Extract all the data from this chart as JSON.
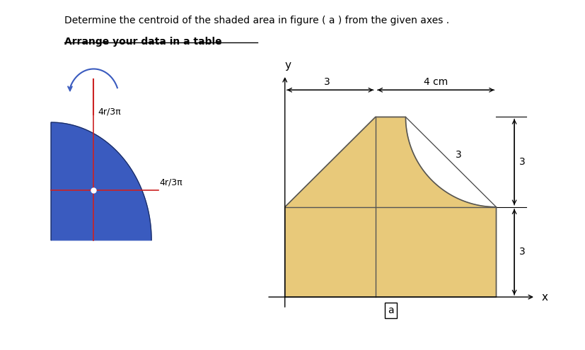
{
  "title_line1": "Determine the centroid of the shaded area in figure ( a ) from the given axes . ",
  "title_bold_underline": "Arrange your data in a table",
  "bg_color": "#ffffff",
  "left_fig": {
    "quarter_circle_color": "#3a5bbf",
    "dim_line_color": "#cc2222",
    "label_4r3pi": "4r/3π",
    "arrow_color": "#3a5bbf"
  },
  "right_fig": {
    "fill_color": "#e8c97a",
    "edge_color": "#555555",
    "label_x": "x",
    "label_y": "y",
    "label_a": "a",
    "dim_color": "#333333"
  }
}
